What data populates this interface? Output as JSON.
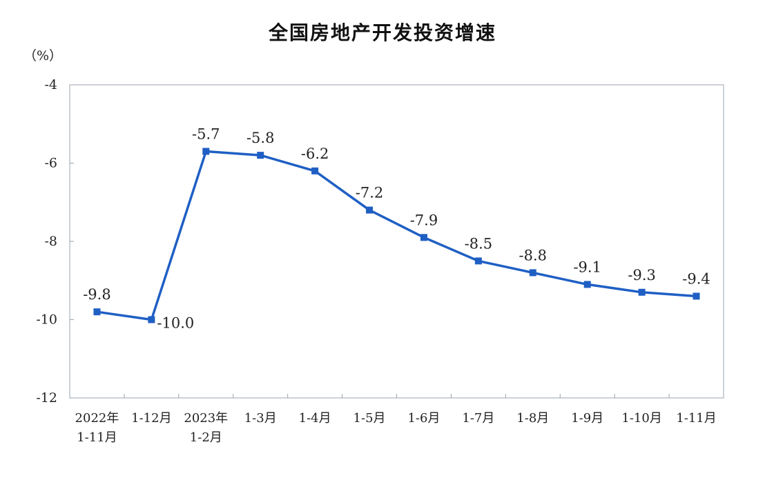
{
  "chart_data": {
    "type": "line",
    "title": "全国房地产开发投资增速",
    "unit_label": "（%）",
    "xlabel": "",
    "ylabel": "",
    "ylim": [
      -12,
      -4
    ],
    "yticks": [
      "-4",
      "-6",
      "-8",
      "-10",
      "-12"
    ],
    "ytick_values": [
      -4,
      -6,
      -8,
      -10,
      -12
    ],
    "categories": [
      [
        "2022年",
        "1-11月"
      ],
      [
        "1-12月"
      ],
      [
        "2023年",
        "1-2月"
      ],
      [
        "1-3月"
      ],
      [
        "1-4月"
      ],
      [
        "1-5月"
      ],
      [
        "1-6月"
      ],
      [
        "1-7月"
      ],
      [
        "1-8月"
      ],
      [
        "1-9月"
      ],
      [
        "1-10月"
      ],
      [
        "1-11月"
      ]
    ],
    "values": [
      -9.8,
      -10.0,
      -5.7,
      -5.8,
      -6.2,
      -7.2,
      -7.9,
      -8.5,
      -8.8,
      -9.1,
      -9.3,
      -9.4
    ],
    "data_labels": [
      "-9.8",
      "-10.0",
      "-5.7",
      "-5.8",
      "-6.2",
      "-7.2",
      "-7.9",
      "-8.5",
      "-8.8",
      "-9.1",
      "-9.3",
      "-9.4"
    ],
    "grid": false,
    "legend": "none",
    "line_color": "#1f5fc4"
  }
}
